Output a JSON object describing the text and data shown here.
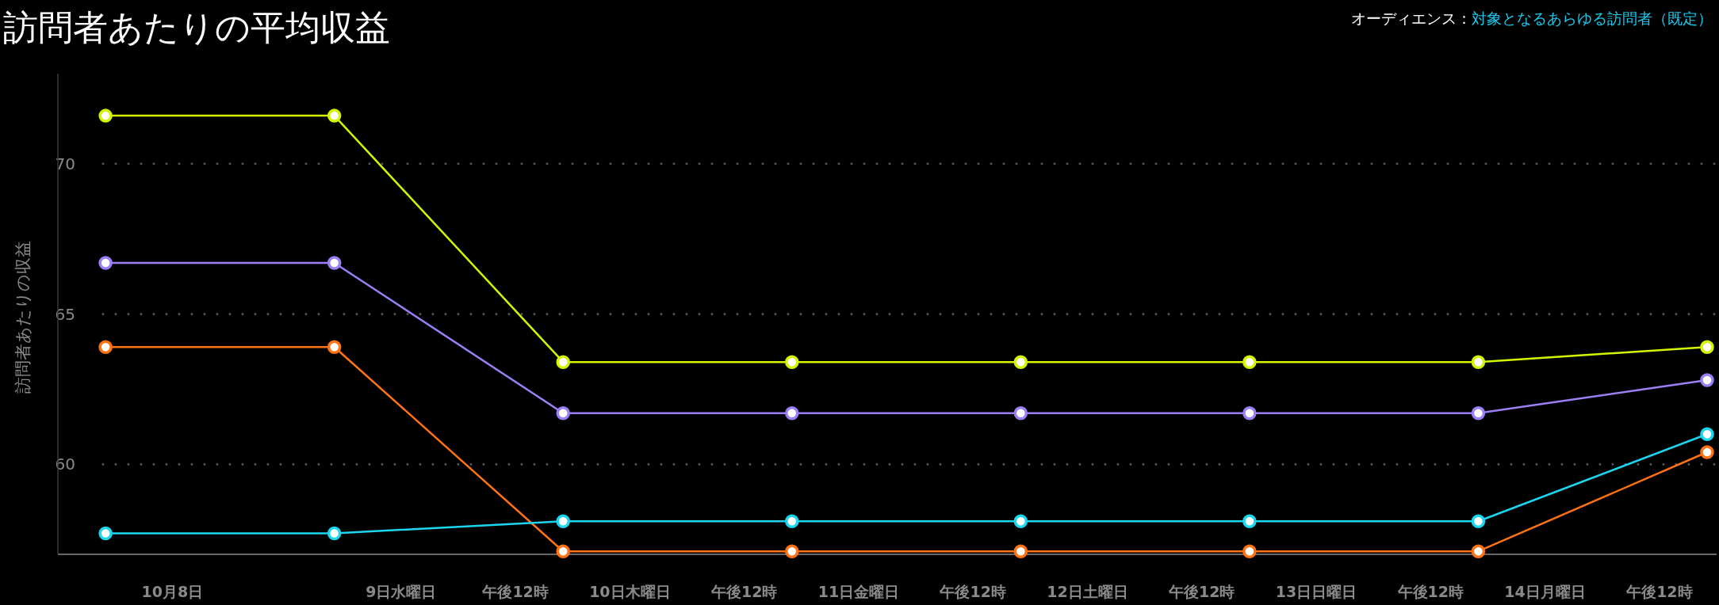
{
  "chart_data": {
    "type": "line",
    "title": "訪問者あたりの平均収益",
    "subtitle": "オーディエンス：",
    "annotations": [
      "対象となるあらゆる訪問者（既定）"
    ],
    "ylabel": "訪問者あたりの収益",
    "x": [
      "--10-07T17:00",
      "--10-08T17:00",
      "--10-09T17:00",
      "--10-10T17:00",
      "--10-11T17:00",
      "--10-12T17:00",
      "--10-13T17:00",
      "--10-14T17:00"
    ],
    "xlim": [
      "--10-07T12:00",
      "--10-14T18:00"
    ],
    "xticks": [
      {
        "value": "--10-08",
        "label": "10月8日"
      },
      {
        "value": "--10-09",
        "label": "9日水曜日"
      },
      {
        "value": "--10-09T12:00",
        "label": "午後12時"
      },
      {
        "value": "--10-10",
        "label": "10日木曜日"
      },
      {
        "value": "--10-10T12:00",
        "label": "午後12時"
      },
      {
        "value": "--10-11",
        "label": "11日金曜日"
      },
      {
        "value": "--10-11T12:00",
        "label": "午後12時"
      },
      {
        "value": "--10-12",
        "label": "12日土曜日"
      },
      {
        "value": "--10-12T12:00",
        "label": "午後12時"
      },
      {
        "value": "--10-13",
        "label": "13日日曜日"
      },
      {
        "value": "--10-13T12:00",
        "label": "午後12時"
      },
      {
        "value": "--10-14",
        "label": "14日月曜日"
      },
      {
        "value": "--10-14T12:00",
        "label": "午後12時"
      }
    ],
    "ylim": [
      57.0,
      73
    ],
    "yticks": [
      60,
      65,
      70
    ],
    "grid": "y",
    "marker": "circle",
    "line_style": "solid",
    "series": [
      {
        "color": "#d4f500",
        "values": [
          71.6,
          71.6,
          63.4,
          63.4,
          63.4,
          63.4,
          63.4,
          63.9
        ]
      },
      {
        "color": "#9d7ff5",
        "values": [
          66.7,
          66.7,
          61.7,
          61.7,
          61.7,
          61.7,
          61.7,
          62.8
        ]
      },
      {
        "color": "#ff7214",
        "values": [
          63.9,
          63.9,
          57.1,
          57.1,
          57.1,
          57.1,
          57.1,
          60.4
        ]
      },
      {
        "color": "#1cd6f0",
        "values": [
          57.7,
          57.7,
          58.1,
          58.1,
          58.1,
          58.1,
          58.1,
          61.0
        ]
      }
    ]
  }
}
